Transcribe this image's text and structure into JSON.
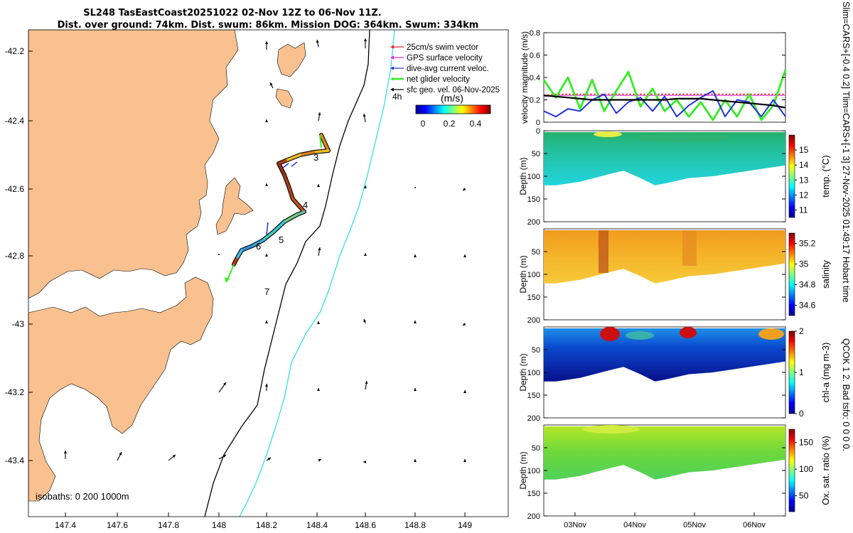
{
  "header": {
    "line1": "SL248 TasEastCoast20251022 02-Nov 12Z to 06-Nov 11Z.",
    "line2": "Dist. over ground: 74km. Dist. swum: 86km. Mission DOG: 364km. Swum: 334km"
  },
  "side_note": "Slim=CARS+[-0.4 0.2] Tlim=CARS+[-1 3] 27-Nov-2025 01:49:17 Hobart time",
  "side_note2": "QCOK 1 2. Bad tsfo: 0 0 0 0.",
  "colors": {
    "land": "#f8c18f",
    "isobath200": "#000000",
    "isobath1000": "#33e0e6",
    "swim": "#dd2222",
    "gps": "#dd22dd",
    "dive": "#2233dd",
    "net": "#33ee22",
    "sfc": "#000000"
  },
  "map": {
    "legend": [
      {
        "label": "25cm/s swim vector",
        "color": "swim"
      },
      {
        "label": "GPS surface velocity",
        "color": "gps"
      },
      {
        "label": "dive-avg current veloc.",
        "color": "dive"
      },
      {
        "label": "net glider velocity",
        "color": "net"
      },
      {
        "label": "sfc geo. vel. 06-Nov-2025",
        "color": "sfc"
      }
    ],
    "arrow_scale_label": "4h",
    "colorbar_title": "(m/s)",
    "colorbar_ticks": [
      "0",
      "0.2",
      "0.4"
    ],
    "isobaths_label": "isobaths: 0   200  1000m",
    "day_labels": [
      "3",
      "4",
      "5",
      "6",
      "7"
    ],
    "lon_ticks": [
      "147.4",
      "147.6",
      "147.8",
      "148",
      "148.2",
      "148.4",
      "148.6",
      "148.8",
      "149"
    ],
    "lat_ticks": [
      "-42.2",
      "-42.4",
      "-42.6",
      "-42.8",
      "-43",
      "-43.2",
      "-43.4"
    ]
  },
  "chart_data": [
    {
      "type": "line",
      "title": "",
      "ylabel": "velocity magnitude (m/s)",
      "ylim": [
        0,
        0.8
      ],
      "yticks": [
        "0",
        "0.2",
        "0.4",
        "0.6",
        "0.8"
      ],
      "x": [
        0,
        0.05,
        0.1,
        0.15,
        0.2,
        0.25,
        0.3,
        0.35,
        0.4,
        0.45,
        0.5,
        0.55,
        0.6,
        0.65,
        0.7,
        0.75,
        0.8,
        0.85,
        0.9,
        0.95,
        1.0
      ],
      "series": [
        {
          "name": "swim",
          "values": [
            0.24,
            0.25,
            0.25,
            0.25,
            0.25,
            0.25,
            0.25,
            0.25,
            0.25,
            0.25,
            0.25,
            0.25,
            0.25,
            0.25,
            0.25,
            0.25,
            0.25,
            0.25,
            0.25,
            0.25,
            0.25
          ]
        },
        {
          "name": "gps",
          "values": [
            0.23,
            0.24,
            0.24,
            0.24,
            0.24,
            0.24,
            0.24,
            0.24,
            0.24,
            0.24,
            0.24,
            0.24,
            0.24,
            0.24,
            0.24,
            0.24,
            0.24,
            0.24,
            0.24,
            0.24,
            0.24
          ]
        },
        {
          "name": "net",
          "values": [
            0.38,
            0.22,
            0.4,
            0.12,
            0.38,
            0.1,
            0.28,
            0.45,
            0.14,
            0.3,
            0.1,
            0.2,
            0.05,
            0.18,
            0.02,
            0.2,
            0.05,
            0.25,
            0.02,
            0.15,
            0.47
          ]
        },
        {
          "name": "dive",
          "values": [
            0.1,
            0.05,
            0.12,
            0.1,
            0.2,
            0.25,
            0.08,
            0.18,
            0.22,
            0.1,
            0.23,
            0.05,
            0.15,
            0.22,
            0.28,
            0.05,
            0.2,
            0.18,
            0.05,
            0.2,
            0.05
          ]
        },
        {
          "name": "sfc",
          "values": [
            0.24,
            0.23,
            0.22,
            0.21,
            0.2,
            0.2,
            0.2,
            0.2,
            0.2,
            0.2,
            0.2,
            0.21,
            0.21,
            0.21,
            0.2,
            0.19,
            0.18,
            0.17,
            0.16,
            0.15,
            0.13
          ]
        }
      ]
    },
    {
      "type": "heatmap",
      "ylabel": "Depth (m)",
      "cbar_label": "temp. (°C)",
      "ylim": [
        200,
        0
      ],
      "yticks": [
        "0",
        "50",
        "100",
        "150",
        "200"
      ],
      "cticks": [
        "11",
        "12",
        "13",
        "14",
        "15"
      ],
      "crange": [
        10.5,
        16
      ]
    },
    {
      "type": "heatmap",
      "ylabel": "Depth (m)",
      "cbar_label": "salinity",
      "ylim": [
        200,
        0
      ],
      "yticks": [
        "50",
        "100",
        "150",
        "200"
      ],
      "cticks": [
        "34.6",
        "34.8",
        "35",
        "35.2"
      ],
      "crange": [
        34.5,
        35.3
      ]
    },
    {
      "type": "heatmap",
      "ylabel": "Depth (m)",
      "cbar_label": "chl-a (mg m-3)",
      "ylim": [
        200,
        0
      ],
      "yticks": [
        "50",
        "100",
        "150",
        "200"
      ],
      "cticks": [
        "0",
        "1",
        "2"
      ],
      "crange": [
        0,
        2
      ]
    },
    {
      "type": "heatmap",
      "ylabel": "Depth (m)",
      "cbar_label": "Ox. sat. ratio (%)",
      "ylim": [
        200,
        0
      ],
      "yticks": [
        "50",
        "100",
        "150",
        "200"
      ],
      "cticks": [
        "50",
        "100",
        "150"
      ],
      "crange": [
        20,
        175
      ]
    }
  ],
  "time_axis": {
    "ticks": [
      "03Nov",
      "04Nov",
      "05Nov",
      "06Nov"
    ]
  }
}
